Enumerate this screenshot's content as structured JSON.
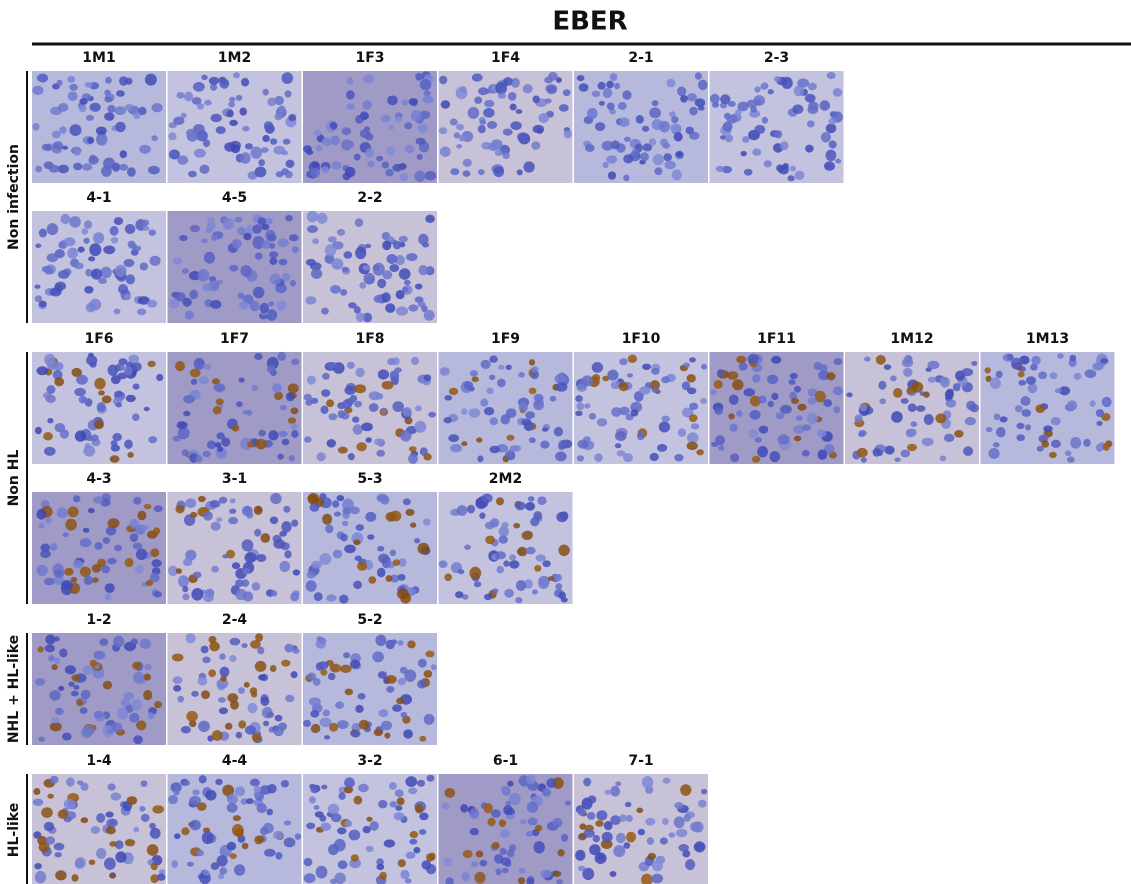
{
  "title": "EBER",
  "groups": [
    {
      "label": "Non infection",
      "rows": [
        [
          "1M1",
          "1M2",
          "1F3",
          "1F4",
          "2-1",
          "2-3"
        ],
        [
          "4-1",
          "4-5",
          "2-2"
        ]
      ]
    },
    {
      "label": "Non HL",
      "rows": [
        [
          "1F6",
          "1F7",
          "1F8",
          "1F9",
          "1F10",
          "1F11",
          "1M12",
          "1M13"
        ],
        [
          "4-3",
          "3-1",
          "5-3",
          "2M2"
        ]
      ]
    },
    {
      "label": "NHL + HL-like",
      "rows": [
        [
          "1-2",
          "2-4",
          "5-2"
        ]
      ]
    },
    {
      "label": "HL-like",
      "rows": [
        [
          "1-4",
          "4-4",
          "3-2",
          "6-1",
          "7-1"
        ]
      ]
    }
  ]
}
